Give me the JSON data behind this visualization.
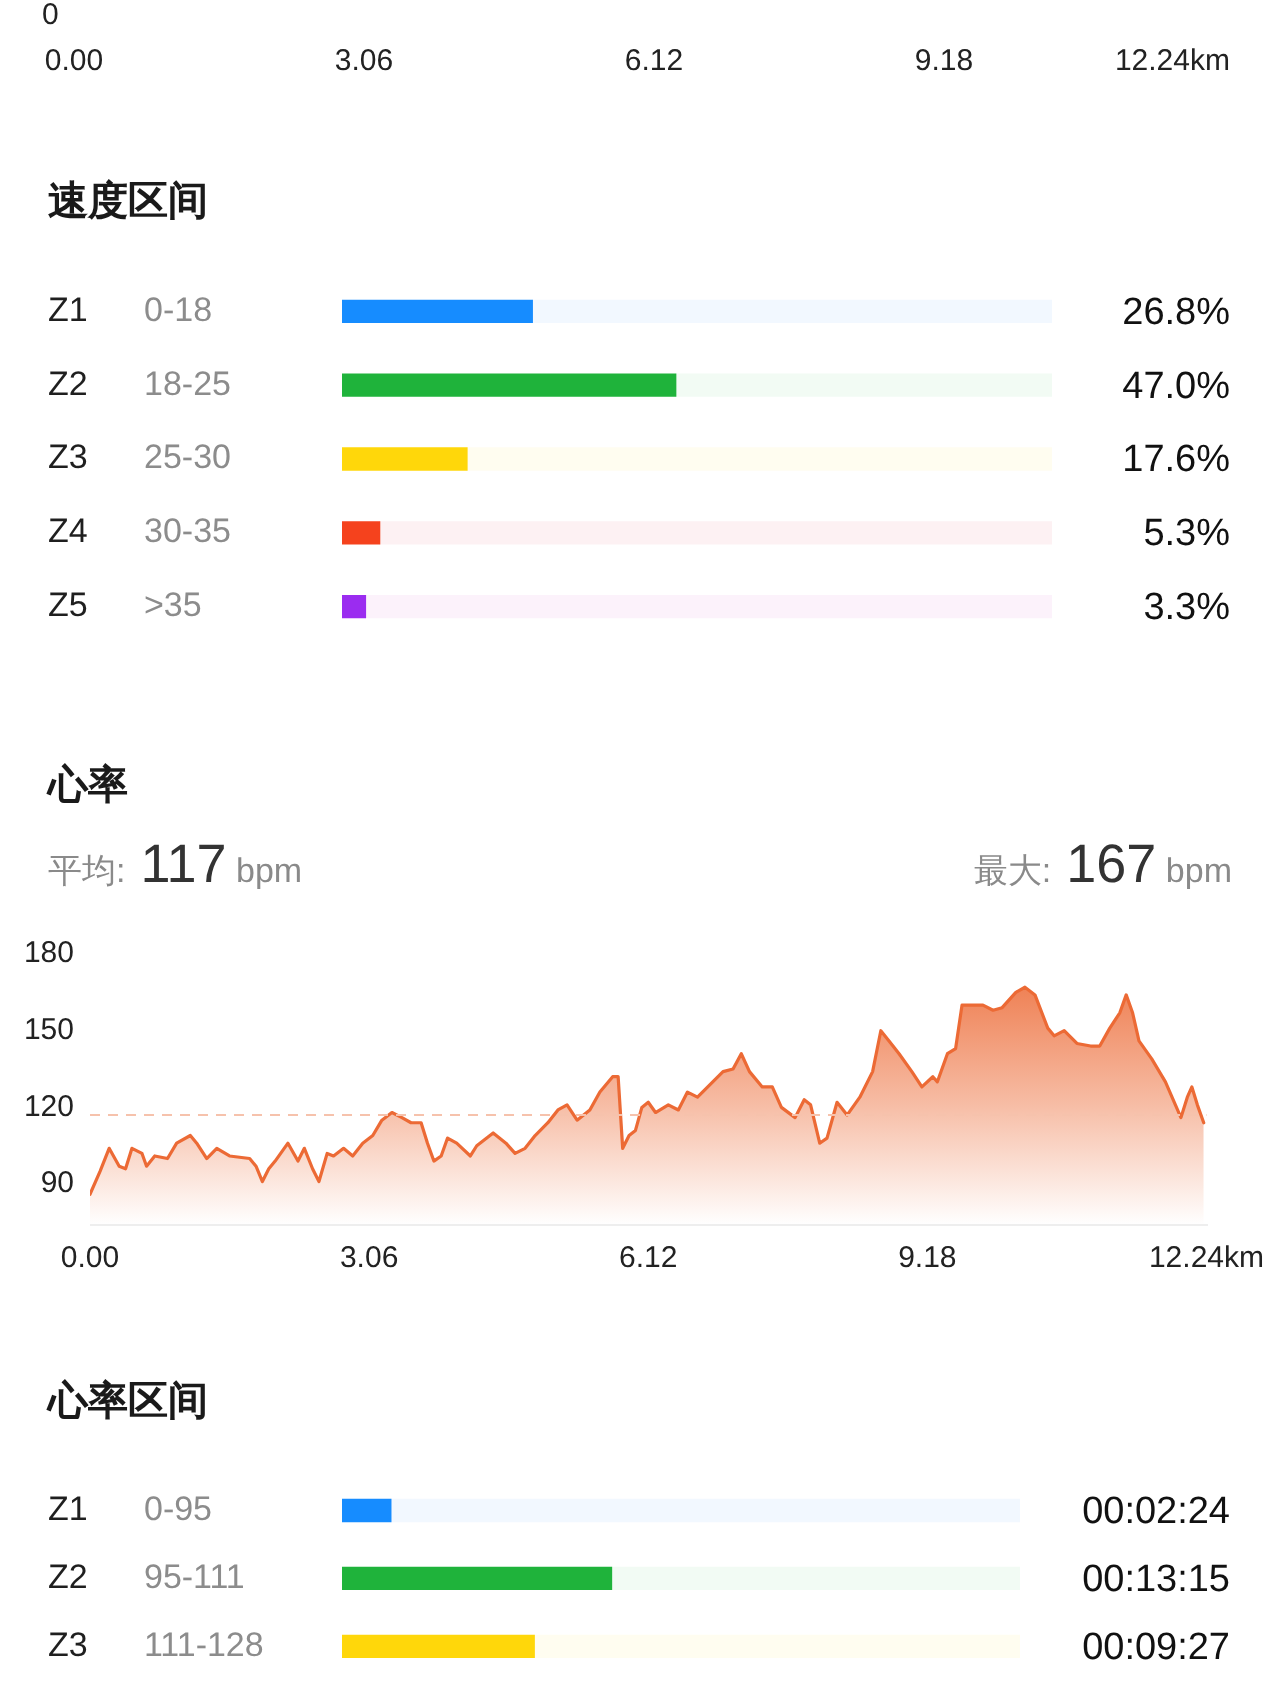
{
  "chart_data": [
    {
      "type": "other",
      "annotations": [
        "0",
        "0.00",
        "3.06",
        "6.12",
        "9.18",
        "12.24km"
      ]
    },
    {
      "type": "bar",
      "orientation": "horizontal",
      "stacked": true,
      "title": "速度区间",
      "categories": [
        "Z1",
        "Z2",
        "Z3",
        "Z4",
        "Z5"
      ],
      "series": [
        {
          "values": [
            26.8,
            47.0,
            17.6,
            5.3,
            3.3
          ],
          "colors": [
            "#168cff",
            "#1fb33b",
            "#ffd70a",
            "#f5421d",
            "#9b2cf0"
          ],
          "value_labels": [
            "26.8%",
            "47.0%",
            "17.6%",
            "5.3%",
            "3.3%"
          ]
        },
        {
          "values": [
            73.2,
            53.0,
            82.4,
            94.7,
            96.7
          ],
          "colors": [
            "#f2f8ff",
            "#f2fbf4",
            "#fffdf0",
            "#fdf1f3",
            "#fcf2fb"
          ]
        }
      ],
      "xlim": [
        0,
        100
      ],
      "annotations": [
        "0-18",
        "18-25",
        "25-30",
        "30-35",
        ">35"
      ]
    },
    {
      "type": "area",
      "title": "心率",
      "annotations": [
        "平均: 117 bpm",
        "最大: 167 bpm"
      ],
      "color": "#ec6a35",
      "x": [
        0,
        0.11,
        0.21,
        0.32,
        0.39,
        0.46,
        0.57,
        0.62,
        0.71,
        0.85,
        0.95,
        1.1,
        1.17,
        1.28,
        1.39,
        1.53,
        1.75,
        1.82,
        1.89,
        1.96,
        2.03,
        2.17,
        2.28,
        2.35,
        2.44,
        2.51,
        2.6,
        2.67,
        2.78,
        2.88,
        2.99,
        3.1,
        3.2,
        3.31,
        3.42,
        3.52,
        3.63,
        3.7,
        3.77,
        3.85,
        3.92,
        4.02,
        4.17,
        4.24,
        4.42,
        4.56,
        4.66,
        4.77,
        4.88,
        5.02,
        5.13,
        5.23,
        5.34,
        5.48,
        5.59,
        5.73,
        5.79,
        5.84,
        5.91,
        5.98,
        6.05,
        6.12,
        6.2,
        6.34,
        6.45,
        6.55,
        6.66,
        6.8,
        6.94,
        7.05,
        7.14,
        7.23,
        7.37,
        7.48,
        7.58,
        7.73,
        7.83,
        7.9,
        8.0,
        8.08,
        8.19,
        8.3,
        8.44,
        8.58,
        8.67,
        8.76,
        8.87,
        9.01,
        9.12,
        9.24,
        9.29,
        9.4,
        9.49,
        9.56,
        9.79,
        9.9,
        10.0,
        10.15,
        10.25,
        10.36,
        10.5,
        10.57,
        10.68,
        10.82,
        10.97,
        11.07,
        11.18,
        11.29,
        11.36,
        11.43,
        11.5,
        11.64,
        11.79,
        11.96,
        12.03,
        12.08,
        12.14,
        12.21
      ],
      "values": [
        86,
        95,
        104,
        97,
        96,
        104,
        102,
        97,
        101,
        100,
        106,
        109,
        106,
        100,
        104,
        101,
        100,
        97,
        91,
        96,
        99,
        106,
        99,
        104,
        96,
        91,
        102,
        101,
        104,
        101,
        106,
        109,
        115,
        118,
        116,
        114,
        114,
        106,
        99,
        101,
        108,
        106,
        101,
        105,
        110,
        106,
        102,
        104,
        109,
        114,
        119,
        121,
        115,
        119,
        126,
        132,
        132,
        104,
        109,
        111,
        120,
        122,
        118,
        121,
        119,
        126,
        124,
        129,
        134,
        135,
        141,
        134,
        128,
        128,
        120,
        116,
        123,
        121,
        106,
        108,
        122,
        117,
        124,
        134,
        150,
        146,
        141,
        134,
        128,
        132,
        130,
        141,
        143,
        160,
        160,
        158,
        159,
        165,
        167,
        164,
        151,
        148,
        150,
        145,
        144,
        144,
        151,
        157,
        164,
        157,
        146,
        139,
        130,
        116,
        124,
        128,
        121,
        114
      ],
      "xlim": [
        0,
        12.24
      ],
      "xticks": [
        {
          "value": 0,
          "label": "0.00"
        },
        3.06,
        6.12,
        9.18,
        {
          "value": 12.24,
          "label": "12.24km"
        }
      ],
      "ylim": [
        74,
        180
      ],
      "yticks": [
        90,
        120,
        150,
        180
      ],
      "ref_lines": [
        {
          "axis": "y",
          "value": 117,
          "color": "#f6c2ac",
          "line_style": "dashed"
        }
      ]
    },
    {
      "type": "bar",
      "orientation": "horizontal",
      "stacked": true,
      "title": "心率区间",
      "categories": [
        "Z1",
        "Z2",
        "Z3"
      ],
      "series": [
        {
          "values": [
            144,
            795,
            567
          ],
          "colors": [
            "#168cff",
            "#1fb33b",
            "#ffd70a"
          ],
          "value_labels": [
            "00:02:24",
            "00:13:15",
            "00:09:27"
          ]
        },
        {
          "values": [
            1856,
            1205,
            1433
          ],
          "colors": [
            "#f2f8ff",
            "#f2fbf4",
            "#fffdf0"
          ]
        }
      ],
      "xlim": [
        0,
        2000
      ],
      "annotations": [
        "0-95",
        "95-111",
        "111-128"
      ]
    }
  ]
}
